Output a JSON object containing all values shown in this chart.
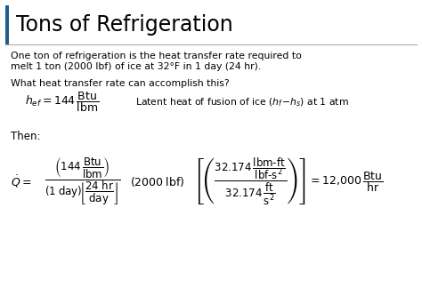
{
  "title": "Tons of Refrigeration",
  "accent_color": "#1F5C8B",
  "bg_color": "#FFFFFF",
  "text_color": "#000000",
  "line1": "One ton of refrigeration is the heat transfer rate required to",
  "line2": "melt 1 ton (2000 lbf) of ice at 32°F in 1 day (24 hr).",
  "line3": "What heat transfer rate can accomplish this?",
  "then_label": "Then:",
  "latent_note": "Latent heat of fusion of ice (h$_f$ – h$_s$) at 1 atm",
  "figsize": [
    4.74,
    3.24
  ],
  "dpi": 100
}
